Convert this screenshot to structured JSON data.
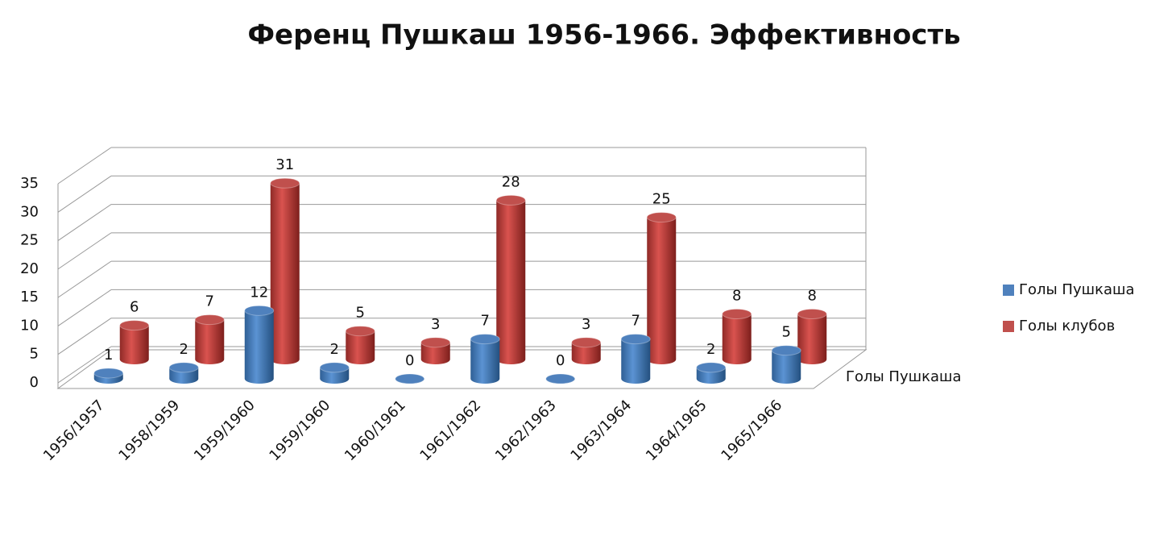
{
  "chart_data": {
    "type": "bar3d",
    "title": "Ференц Пушкаш 1956-1966. Эффективность",
    "categories": [
      "1956/1957",
      "1958/1959",
      "1959/1960",
      "1959/1960",
      "1960/1961",
      "1961/1962",
      "1962/1963",
      "1963/1964",
      "1964/1965",
      "1965/1966"
    ],
    "series": [
      {
        "name": "Голы Пушкаша",
        "color": "#4f81bd",
        "values": [
          1,
          2,
          12,
          2,
          0,
          7,
          0,
          7,
          2,
          5
        ]
      },
      {
        "name": "Голы клубов",
        "color": "#c0504d",
        "values": [
          6,
          7,
          31,
          5,
          3,
          28,
          3,
          25,
          8,
          8
        ]
      }
    ],
    "depth_label": "Голы Пушкаша",
    "ylim": [
      0,
      35
    ],
    "yticks": [
      0,
      5,
      10,
      15,
      20,
      25,
      30,
      35
    ],
    "grid": true,
    "legend": "right"
  }
}
